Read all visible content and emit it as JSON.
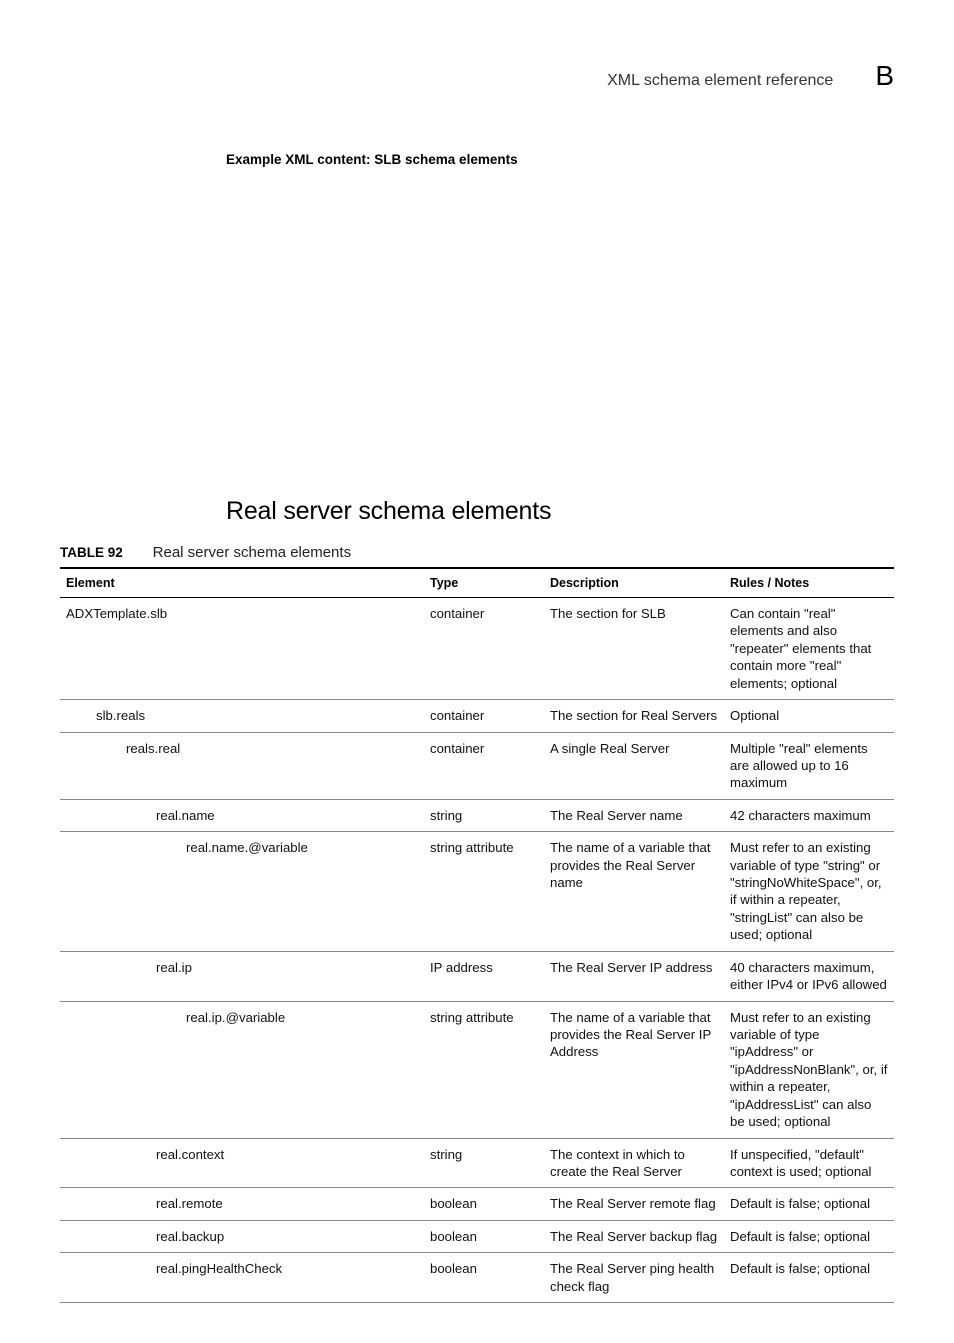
{
  "header": {
    "running_title": "XML schema element reference",
    "appendix_letter": "B"
  },
  "example_caption": "Example XML content: SLB schema elements",
  "section_heading": "Real server schema elements",
  "table": {
    "label": "TABLE 92",
    "caption": "Real server schema elements",
    "columns": {
      "element": "Element",
      "type": "Type",
      "description": "Description",
      "rules": "Rules / Notes"
    },
    "rows": [
      {
        "indent": 0,
        "element": "ADXTemplate.slb",
        "type": "container",
        "description": "The section for SLB",
        "rules": "Can contain \"real\" elements and also \"repeater\" elements that contain more \"real\" elements; optional"
      },
      {
        "indent": 1,
        "element": "slb.reals",
        "type": "container",
        "description": "The section for Real Servers",
        "rules": "Optional"
      },
      {
        "indent": 2,
        "element": "reals.real",
        "type": "container",
        "description": "A single Real Server",
        "rules": "Multiple \"real\" elements are allowed up to 16 maximum"
      },
      {
        "indent": 3,
        "element": "real.name",
        "type": "string",
        "description": "The Real Server name",
        "rules": "42 characters maximum"
      },
      {
        "indent": 4,
        "element": "real.name.@variable",
        "type": "string attribute",
        "description": "The name of a variable that provides the Real Server name",
        "rules": "Must refer to an existing variable of type \"string\" or \"stringNoWhiteSpace\", or, if within a repeater, \"stringList\" can also be used; optional"
      },
      {
        "indent": 3,
        "element": "real.ip",
        "type": "IP address",
        "description": "The Real Server IP address",
        "rules": "40 characters maximum, either IPv4 or IPv6 allowed"
      },
      {
        "indent": 4,
        "element": "real.ip.@variable",
        "type": "string attribute",
        "description": "The name of a variable that provides the Real Server IP Address",
        "rules": "Must refer to an existing variable of type \"ipAddress\" or \"ipAddressNonBlank\", or, if within a repeater, \"ipAddressList\" can also be used; optional"
      },
      {
        "indent": 3,
        "element": "real.context",
        "type": "string",
        "description": "The context in which to create the Real Server",
        "rules": "If unspecified, \"default\" context is used; optional"
      },
      {
        "indent": 3,
        "element": "real.remote",
        "type": "boolean",
        "description": "The Real Server remote flag",
        "rules": "Default is false; optional"
      },
      {
        "indent": 3,
        "element": "real.backup",
        "type": "boolean",
        "description": "The Real Server backup flag",
        "rules": "Default is false; optional"
      },
      {
        "indent": 3,
        "element": "real.pingHealthCheck",
        "type": "boolean",
        "description": "The Real Server ping health check flag",
        "rules": "Default is false; optional"
      }
    ]
  }
}
